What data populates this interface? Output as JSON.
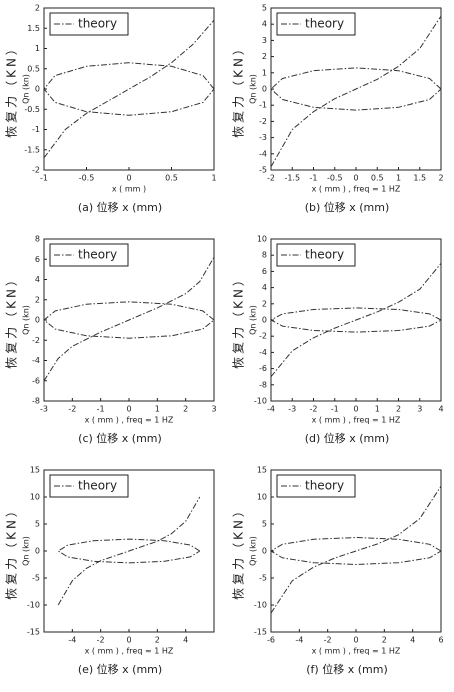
{
  "chart_data": [
    {
      "type": "line",
      "xlabel": "x ( mm )",
      "ylabel": "Qn (kn)",
      "side_label": "恢复力（KN）",
      "caption": "(a)  位移 x (mm)",
      "legend": "upper left",
      "line_style": "dashdot",
      "xlim": [
        -1,
        1
      ],
      "xticks": [
        -1,
        -0.5,
        0,
        0.5,
        1
      ],
      "ylim": [
        -2,
        2
      ],
      "yticks": [
        -2,
        -1.5,
        -1,
        -0.5,
        0,
        0.5,
        1,
        1.5,
        2
      ],
      "series": [
        {
          "name": "theory",
          "color": "#333333",
          "x": [
            -1,
            -0.75,
            -0.5,
            -0.25,
            0,
            0.25,
            0.5,
            0.75,
            1
          ],
          "values": [
            -1.7,
            -1.0,
            -0.6,
            -0.3,
            0,
            0.3,
            0.65,
            1.1,
            1.7
          ]
        },
        {
          "color": "#333333",
          "x": [
            1,
            0.87,
            0.5,
            0,
            -0.5,
            -0.87,
            -1,
            -0.87,
            -0.5,
            0,
            0.5,
            0.87,
            1
          ],
          "values": [
            0,
            0.33,
            0.56,
            0.65,
            0.56,
            0.33,
            0,
            -0.33,
            -0.56,
            -0.65,
            -0.56,
            -0.33,
            0
          ]
        }
      ]
    },
    {
      "type": "line",
      "xlabel": "x ( mm ) , freq = 1 HZ",
      "ylabel": "Qn (kn)",
      "side_label": "恢复力（KN）",
      "caption": "(b)  位移 x (mm)",
      "legend": "upper left",
      "line_style": "dashdot",
      "xlim": [
        -2,
        2
      ],
      "xticks": [
        -2,
        -1.5,
        -1,
        -0.5,
        0,
        0.5,
        1,
        1.5,
        2
      ],
      "ylim": [
        -5,
        5
      ],
      "yticks": [
        -5,
        -4,
        -3,
        -2,
        -1,
        0,
        1,
        2,
        3,
        4,
        5
      ],
      "series": [
        {
          "name": "theory",
          "color": "#333333",
          "x": [
            -2,
            -1.5,
            -1,
            -0.5,
            0,
            0.5,
            1,
            1.5,
            2
          ],
          "values": [
            -4.8,
            -2.5,
            -1.4,
            -0.6,
            0,
            0.6,
            1.4,
            2.5,
            4.5
          ]
        },
        {
          "color": "#333333",
          "x": [
            2,
            1.73,
            1,
            0,
            -1,
            -1.73,
            -2,
            -1.73,
            -1,
            0,
            1,
            1.73,
            2
          ],
          "values": [
            0,
            0.65,
            1.13,
            1.3,
            1.13,
            0.65,
            0,
            -0.65,
            -1.13,
            -1.3,
            -1.13,
            -0.65,
            0
          ]
        }
      ]
    },
    {
      "type": "line",
      "xlabel": "x ( mm ) , freq = 1 HZ",
      "ylabel": "Qn (kn)",
      "side_label": "恢复力（KN）",
      "caption": "(c)  位移 x (mm)",
      "legend": "upper left",
      "line_style": "dashdot",
      "xlim": [
        -3,
        3
      ],
      "xticks": [
        -3,
        -2,
        -1,
        0,
        1,
        2,
        3
      ],
      "ylim": [
        -8,
        8
      ],
      "yticks": [
        -8,
        -6,
        -4,
        -2,
        0,
        2,
        4,
        6,
        8
      ],
      "series": [
        {
          "name": "theory",
          "color": "#333333",
          "x": [
            -3,
            -2.5,
            -2,
            -1,
            0,
            1,
            2,
            2.5,
            3
          ],
          "values": [
            -6,
            -3.8,
            -2.6,
            -1.2,
            0,
            1.2,
            2.6,
            3.8,
            6.2
          ]
        },
        {
          "color": "#333333",
          "x": [
            3,
            2.6,
            1.5,
            0,
            -1.5,
            -2.6,
            -3,
            -2.6,
            -1.5,
            0,
            1.5,
            2.6,
            3
          ],
          "values": [
            0,
            0.9,
            1.56,
            1.8,
            1.56,
            0.9,
            0,
            -0.9,
            -1.56,
            -1.8,
            -1.56,
            -0.9,
            0
          ]
        }
      ]
    },
    {
      "type": "line",
      "xlabel": "x ( mm ) , freq = 1 HZ",
      "ylabel": "Qn (kn)",
      "side_label": "恢复力（KN）",
      "caption": "(d)  位移 x (mm)",
      "legend": "upper left",
      "line_style": "dashdot",
      "xlim": [
        -4,
        4
      ],
      "xticks": [
        -4,
        -3,
        -2,
        -1,
        0,
        1,
        2,
        3,
        4
      ],
      "ylim": [
        -10,
        10
      ],
      "yticks": [
        -10,
        -8,
        -6,
        -4,
        -2,
        0,
        2,
        4,
        6,
        8,
        10
      ],
      "series": [
        {
          "name": "theory",
          "color": "#333333",
          "x": [
            -4,
            -3,
            -2,
            -1,
            0,
            1,
            2,
            3,
            4
          ],
          "values": [
            -7,
            -3.8,
            -2.2,
            -1,
            0,
            1,
            2.2,
            3.8,
            7
          ]
        },
        {
          "color": "#333333",
          "x": [
            4,
            3.46,
            2,
            0,
            -2,
            -3.46,
            -4,
            -3.46,
            -2,
            0,
            2,
            3.46,
            4
          ],
          "values": [
            0,
            0.75,
            1.3,
            1.5,
            1.3,
            0.75,
            0,
            -0.75,
            -1.3,
            -1.5,
            -1.3,
            -0.75,
            0
          ]
        }
      ]
    },
    {
      "type": "line",
      "xlabel": "x ( mm ) , freq = 1 HZ",
      "ylabel": "Qn (kn)",
      "side_label": "恢复力（KN）",
      "caption": "(e)  位移 x (mm)",
      "legend": "upper left",
      "line_style": "dashdot",
      "xlim": [
        -6,
        6
      ],
      "xticks": [
        -4,
        -2,
        0,
        2,
        4
      ],
      "ylim": [
        -15,
        15
      ],
      "yticks": [
        -15,
        -10,
        -5,
        0,
        5,
        10,
        15
      ],
      "series": [
        {
          "name": "theory",
          "color": "#333333",
          "x": [
            -5,
            -4,
            -3,
            -2,
            0,
            2,
            3,
            4,
            5
          ],
          "values": [
            -10,
            -5.5,
            -3.2,
            -1.8,
            0,
            1.8,
            3.2,
            5.5,
            10
          ]
        },
        {
          "color": "#333333",
          "x": [
            5,
            4.33,
            2.5,
            0,
            -2.5,
            -4.33,
            -5,
            -4.33,
            -2.5,
            0,
            2.5,
            4.33,
            5
          ],
          "values": [
            0,
            1.1,
            1.9,
            2.2,
            1.9,
            1.1,
            0,
            -1.1,
            -1.9,
            -2.2,
            -1.9,
            -1.1,
            0
          ]
        }
      ]
    },
    {
      "type": "line",
      "xlabel": "x ( mm ) , freq = 1 HZ",
      "ylabel": "Qn (kn)",
      "side_label": "恢复力（KN）",
      "caption": "(f)  位移 x (mm)",
      "legend": "upper left",
      "line_style": "dashdot",
      "xlim": [
        -6,
        6
      ],
      "xticks": [
        -6,
        -4,
        -2,
        0,
        2,
        4,
        6
      ],
      "ylim": [
        -15,
        15
      ],
      "yticks": [
        -15,
        -10,
        -5,
        0,
        5,
        10,
        15
      ],
      "series": [
        {
          "name": "theory",
          "color": "#333333",
          "x": [
            -6,
            -4.5,
            -3,
            -1.5,
            0,
            1.5,
            3,
            4.5,
            6
          ],
          "values": [
            -11.5,
            -5.5,
            -3,
            -1.3,
            0,
            1.3,
            3,
            6,
            12
          ]
        },
        {
          "color": "#333333",
          "x": [
            6,
            5.2,
            3,
            0,
            -3,
            -5.2,
            -6,
            -5.2,
            -3,
            0,
            3,
            5.2,
            6
          ],
          "values": [
            0,
            1.25,
            2.17,
            2.5,
            2.17,
            1.25,
            0,
            -1.25,
            -2.17,
            -2.5,
            -2.17,
            -1.25,
            0
          ]
        }
      ]
    }
  ]
}
